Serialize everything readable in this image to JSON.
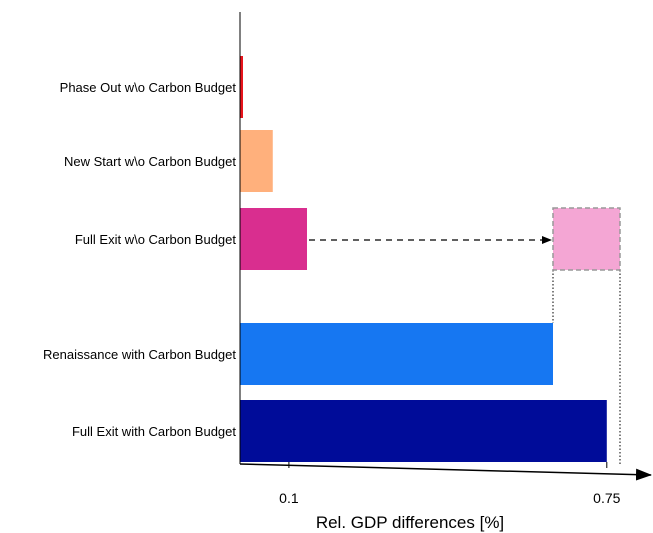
{
  "chart_data": {
    "type": "bar",
    "orientation": "horizontal",
    "title": "",
    "xlabel": "Rel. GDP differences [%]",
    "ylabel": "",
    "xlim": [
      0,
      0.78
    ],
    "xticks": [
      {
        "value": 0.1,
        "label": "0.1"
      },
      {
        "value": 0.75,
        "label": "0.75"
      }
    ],
    "categories": [
      "Phase Out w\\o Carbon Budget",
      "New Start w\\o Carbon Budget",
      "Full Exit w\\o Carbon Budget",
      "Renaissance with Carbon Budget",
      "Full Exit with Carbon Budget"
    ],
    "values": [
      0.004,
      0.067,
      0.137,
      0.64,
      0.75
    ],
    "colors": [
      "#e8141c",
      "#ffb07c",
      "#d92e8f",
      "#1677f2",
      "#000c99"
    ],
    "projected": {
      "category": "Full Exit w\\o Carbon Budget",
      "from": 0.64,
      "to": 0.777,
      "color": "#f4a6d4",
      "border_color": "#999999"
    },
    "grid": false,
    "legend": "none"
  }
}
